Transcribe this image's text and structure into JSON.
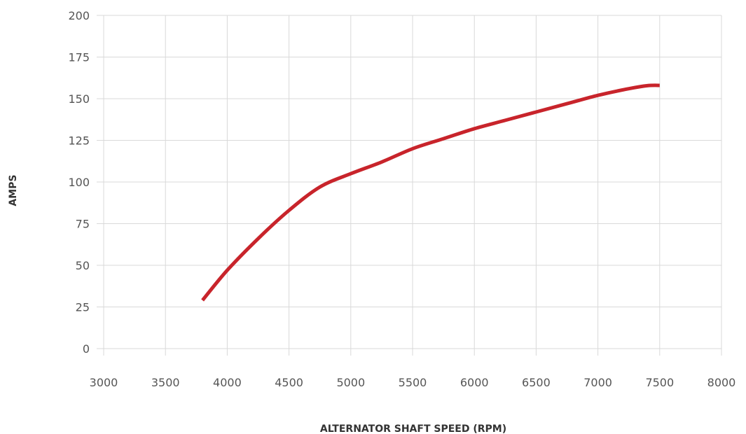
{
  "chart_data": {
    "type": "line",
    "title": "",
    "xlabel": "ALTERNATOR SHAFT SPEED (RPM)",
    "ylabel": "AMPS",
    "xlim": [
      3000,
      8000
    ],
    "ylim": [
      0,
      200
    ],
    "x_ticks": [
      "3000",
      "3500",
      "4000",
      "4500",
      "5000",
      "5500",
      "6000",
      "6500",
      "7000",
      "7500",
      "8000"
    ],
    "y_ticks": [
      "0",
      "25",
      "50",
      "75",
      "100",
      "125",
      "150",
      "175",
      "200"
    ],
    "grid": true,
    "series": [
      {
        "color": "#c8242b",
        "x": [
          3800,
          4000,
          4250,
          4500,
          4750,
          5000,
          5250,
          5500,
          5750,
          6000,
          6250,
          6500,
          6750,
          7000,
          7250,
          7400,
          7500
        ],
        "y": [
          29,
          47,
          66,
          83,
          97,
          105,
          112,
          120,
          126,
          132,
          137,
          142,
          147,
          152,
          156,
          157.8,
          158
        ]
      }
    ]
  }
}
